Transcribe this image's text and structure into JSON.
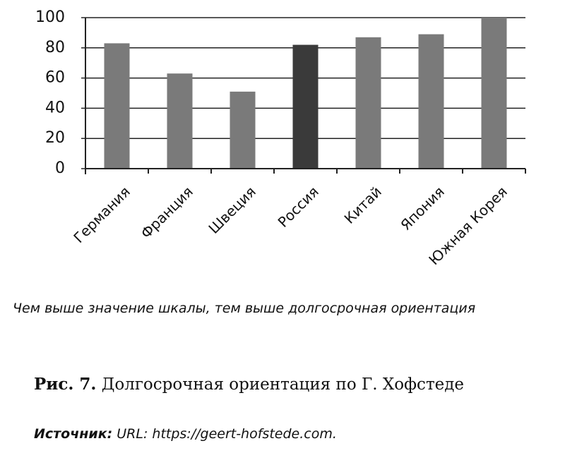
{
  "chart_data": {
    "type": "bar",
    "categories": [
      "Германия",
      "Франция",
      "Швеция",
      "Россия",
      "Китай",
      "Япония",
      "Южная Корея"
    ],
    "values": [
      83,
      63,
      51,
      82,
      87,
      89,
      100
    ],
    "colors": [
      "#7a7a7a",
      "#7a7a7a",
      "#7a7a7a",
      "#3a3a3a",
      "#7a7a7a",
      "#7a7a7a",
      "#7a7a7a"
    ],
    "ylim": [
      0,
      100
    ],
    "yticks": [
      0,
      20,
      40,
      60,
      80,
      100
    ],
    "grid": true
  },
  "caption": "Чем выше значение шкалы, тем выше долгосрочная ориентация",
  "figure": {
    "label": "Рис. 7.",
    "title": "Долгосрочная ориентация по Г. Хофстеде"
  },
  "source": {
    "label": "Источник:",
    "text": "URL: https://geert-hofstede.com."
  }
}
